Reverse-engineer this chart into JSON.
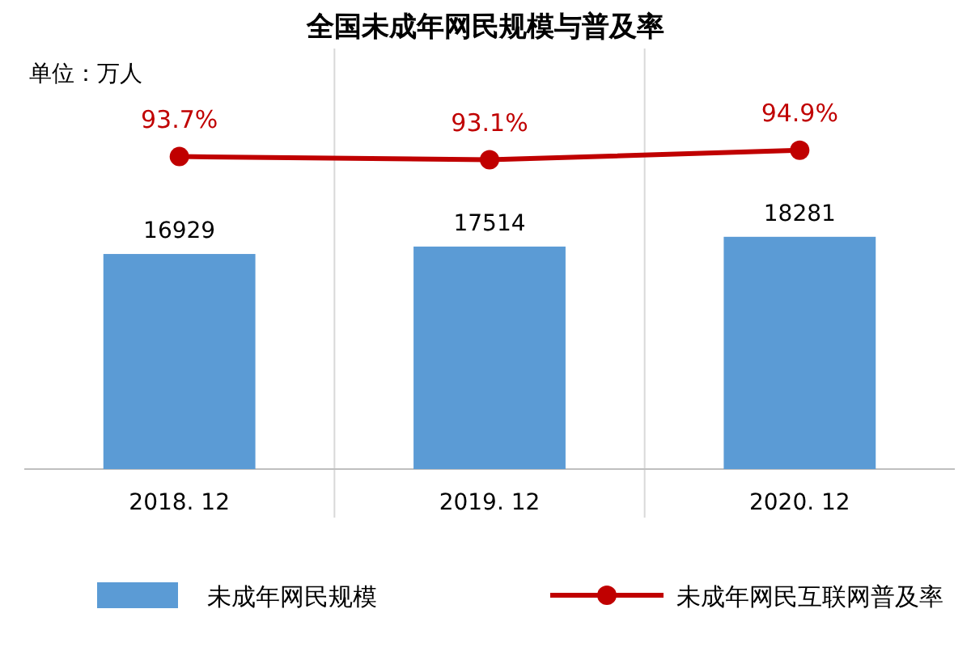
{
  "chart_data": {
    "type": "bar",
    "title": "全国未成年网民规模与普及率",
    "annotations": [
      "单位：万人"
    ],
    "categories": [
      "2018. 12",
      "2019. 12",
      "2020. 12"
    ],
    "series": [
      {
        "name": "未成年网民规模",
        "color": "#5b9bd5",
        "values": [
          16929,
          17514,
          18281
        ]
      },
      {
        "name": "未成年网民互联网普及率",
        "type": "line",
        "axis": "y2",
        "color": "#c00000",
        "values": [
          93.7,
          93.1,
          94.9
        ],
        "value_labels": [
          "93.7%",
          "93.1%",
          "94.9%"
        ]
      }
    ],
    "ylim": [
      0,
      33100
    ],
    "y2lim": [
      35,
      114
    ],
    "data_labels": true,
    "grid": "x",
    "legend": "bottom",
    "marker": "circle"
  }
}
